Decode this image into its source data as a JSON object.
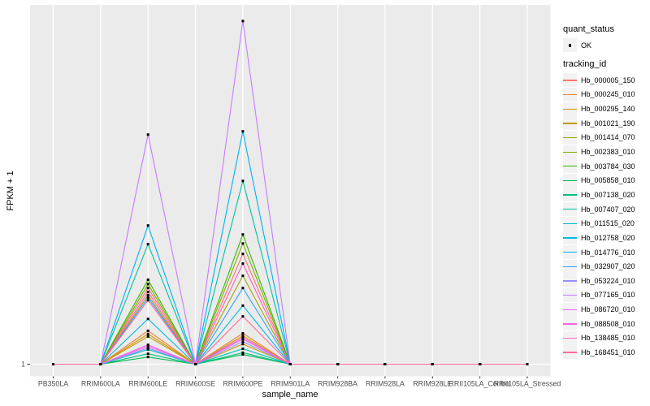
{
  "figure": {
    "background": "#FFFFFF",
    "panel_background": "#EBEBEB",
    "gridline_color": "#FFFFFF",
    "axis_text_color": "#4D4D4D",
    "tick_mark_color": "#333333",
    "point_marker_color": "#000000"
  },
  "axes": {
    "x": {
      "title": "sample_name",
      "tick_labels": [
        "PB350LA",
        "RRIM600LA",
        "RRIM600LE",
        "RRIM600SE",
        "RRIM600PE",
        "RRIM901LA",
        "RRIM928BA",
        "RRIM928LA",
        "RRIM928LE",
        "RRII105LA_Control",
        "RRII105LA_Stressed"
      ]
    },
    "y": {
      "title": "FPKM + 1",
      "tick_labels": [
        "1"
      ]
    }
  },
  "legend": {
    "quant_status": {
      "title": "quant_status",
      "items": [
        {
          "label": "OK",
          "glyph": "point-icon"
        }
      ]
    },
    "tracking_id": {
      "title": "tracking_id",
      "note": "items are the series names/colors in chart_data.series"
    }
  },
  "chart_data": {
    "type": "line",
    "x_type": "categorical",
    "title": "",
    "xlabel": "sample_name",
    "ylabel": "FPKM + 1",
    "y_axis": {
      "visible_breaks": [
        "1"
      ],
      "value_encoding": "values are fractions of panel height above the y=1 baseline (only the '1' break is labeled on the axis); 0 = on the baseline at FPKM+1 = 1"
    },
    "grid": {
      "vertical_major": true,
      "horizontal_major_at": [
        "1"
      ]
    },
    "legend_position": "right",
    "point_marker": {
      "shape": "small-black-square",
      "meaning": "quant_status OK"
    },
    "categories": [
      "PB350LA",
      "RRIM600LA",
      "RRIM600LE",
      "RRIM600SE",
      "RRIM600PE",
      "RRIM901LA",
      "RRIM928BA",
      "RRIM928LA",
      "RRIM928LE",
      "RRII105LA_Control",
      "RRII105LA_Stressed"
    ],
    "series": [
      {
        "name": "Hb_000005_150",
        "color": "#F8766D",
        "values": [
          0,
          0,
          0.212,
          0,
          0.307,
          0,
          0,
          0,
          0,
          0,
          0
        ]
      },
      {
        "name": "Hb_000245_010",
        "color": "#EA8331",
        "values": [
          0,
          0,
          0.093,
          0,
          0.086,
          0,
          0,
          0,
          0,
          0,
          0
        ]
      },
      {
        "name": "Hb_000295_140",
        "color": "#D89000",
        "values": [
          0,
          0,
          0.084,
          0,
          0.079,
          0,
          0,
          0,
          0,
          0,
          0
        ]
      },
      {
        "name": "Hb_001021_190",
        "color": "#C09B00",
        "values": [
          0,
          0,
          0.077,
          0,
          0.056,
          0,
          0,
          0,
          0,
          0,
          0
        ]
      },
      {
        "name": "Hb_001414_070",
        "color": "#A3A500",
        "values": [
          0,
          0,
          0.192,
          0,
          0.246,
          0,
          0,
          0,
          0,
          0,
          0
        ]
      },
      {
        "name": "Hb_002383_010",
        "color": "#7CAE00",
        "values": [
          0,
          0,
          0.223,
          0,
          0.336,
          0,
          0,
          0,
          0,
          0,
          0
        ]
      },
      {
        "name": "Hb_003784_030",
        "color": "#39B600",
        "values": [
          0,
          0,
          0.235,
          0,
          0.361,
          0,
          0,
          0,
          0,
          0,
          0
        ]
      },
      {
        "name": "Hb_005858_010",
        "color": "#00BB4E",
        "values": [
          0,
          0,
          0.02,
          0,
          0.027,
          0,
          0,
          0,
          0,
          0,
          0
        ]
      },
      {
        "name": "Hb_007138_020",
        "color": "#00BF7D",
        "values": [
          0,
          0,
          0.029,
          0,
          0.032,
          0,
          0,
          0,
          0,
          0,
          0
        ]
      },
      {
        "name": "Hb_007407_020",
        "color": "#00C1A3",
        "values": [
          0,
          0,
          0.334,
          0,
          0.51,
          0,
          0,
          0,
          0,
          0,
          0
        ]
      },
      {
        "name": "Hb_011515_020",
        "color": "#00BFC4",
        "values": [
          0,
          0,
          0.041,
          0,
          0.043,
          0,
          0,
          0,
          0,
          0,
          0
        ]
      },
      {
        "name": "Hb_012758_020",
        "color": "#00BAE0",
        "values": [
          0,
          0,
          0.126,
          0,
          0.163,
          0,
          0,
          0,
          0,
          0,
          0
        ]
      },
      {
        "name": "Hb_014776_010",
        "color": "#00B0F6",
        "values": [
          0,
          0,
          0.386,
          0,
          0.648,
          0,
          0,
          0,
          0,
          0,
          0
        ]
      },
      {
        "name": "Hb_032907_020",
        "color": "#35A2FF",
        "values": [
          0,
          0,
          0.185,
          0,
          0.212,
          0,
          0,
          0,
          0,
          0,
          0
        ]
      },
      {
        "name": "Hb_053224_010",
        "color": "#9590FF",
        "values": [
          0,
          0,
          0.045,
          0,
          0.063,
          0,
          0,
          0,
          0,
          0,
          0
        ]
      },
      {
        "name": "Hb_077165_010",
        "color": "#C77CFF",
        "values": [
          0,
          0,
          0.639,
          0,
          0.955,
          0,
          0,
          0,
          0,
          0,
          0
        ]
      },
      {
        "name": "Hb_086720_010",
        "color": "#E76BF3",
        "values": [
          0,
          0,
          0.054,
          0,
          0.074,
          0,
          0,
          0,
          0,
          0,
          0
        ]
      },
      {
        "name": "Hb_088508_010",
        "color": "#FA62DB",
        "values": [
          0,
          0,
          0.05,
          0,
          0.07,
          0,
          0,
          0,
          0,
          0,
          0
        ]
      },
      {
        "name": "Hb_138485_010",
        "color": "#FF62BC",
        "values": [
          0,
          0,
          0.201,
          0,
          0.28,
          0,
          0,
          0,
          0,
          0,
          0
        ]
      },
      {
        "name": "Hb_168451_010",
        "color": "#FF6A98",
        "values": [
          0,
          0,
          0.178,
          0,
          0.133,
          0,
          0,
          0,
          0,
          0,
          0
        ]
      }
    ]
  }
}
